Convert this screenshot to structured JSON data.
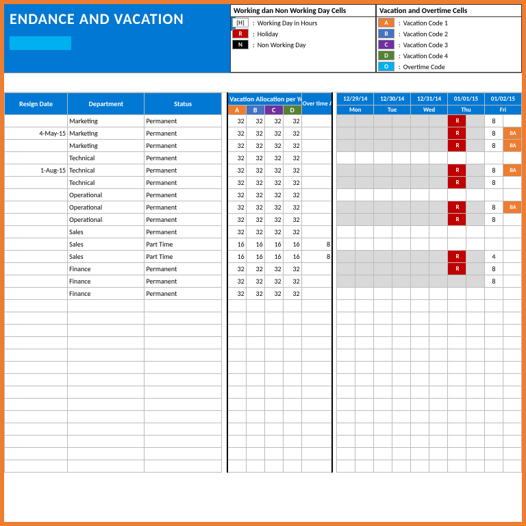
{
  "title": "ENDANCE AND VACATION",
  "legend1": {
    "title": "Working dan Non Working Day Cells",
    "rows": [
      {
        "code": "[H]",
        "bg": "#ffffff",
        "fg": "#333333",
        "label": "Working Day in Hours"
      },
      {
        "code": "R",
        "bg": "#c00000",
        "fg": "#ffffff",
        "label": "Holiday"
      },
      {
        "code": "N",
        "bg": "#000000",
        "fg": "#ffffff",
        "label": "Non Working Day"
      }
    ]
  },
  "legend2": {
    "title": "Vacation and Overtime Cells",
    "rows": [
      {
        "code": "A",
        "bg": "#ed7d31",
        "fg": "#ffffff",
        "label": "Vacation Code 1"
      },
      {
        "code": "B",
        "bg": "#4472c4",
        "fg": "#ffffff",
        "label": "Vacation Code 2"
      },
      {
        "code": "C",
        "bg": "#7030a0",
        "fg": "#ffffff",
        "label": "Vacation Code 3"
      },
      {
        "code": "D",
        "bg": "#548235",
        "fg": "#ffffff",
        "label": "Vacation Code 4"
      },
      {
        "code": "O",
        "bg": "#00b0f0",
        "fg": "#ffffff",
        "label": "Overtime Code"
      }
    ]
  },
  "headers": {
    "resign": "Resign Date",
    "dept": "Department",
    "status": "Status",
    "vacation_alloc": "Vacation Allocation per Year (Hour)",
    "overtime": "Over time Allocat ion",
    "codes": [
      {
        "code": "A",
        "bg": "#ed7d31"
      },
      {
        "code": "B",
        "bg": "#4472c4"
      },
      {
        "code": "C",
        "bg": "#7030a0"
      },
      {
        "code": "D",
        "bg": "#548235"
      }
    ],
    "dates": [
      {
        "date": "12/29/14",
        "day": "Mon"
      },
      {
        "date": "12/30/14",
        "day": "Tue"
      },
      {
        "date": "12/31/14",
        "day": "Wed"
      },
      {
        "date": "01/01/15",
        "day": "Thu"
      },
      {
        "date": "01/02/15",
        "day": "Fri"
      }
    ]
  },
  "rows": [
    {
      "resign": "",
      "dept": "Marketing",
      "status": "Permanent",
      "a": 32,
      "b": 32,
      "c": 32,
      "d": 32,
      "ot": "",
      "days": [
        [
          "g",
          ""
        ],
        [
          "g",
          ""
        ],
        [
          "g",
          ""
        ],
        [
          "R",
          "R"
        ],
        [
          "",
          "8"
        ]
      ]
    },
    {
      "resign": "4-May-15",
      "dept": "Marketing",
      "status": "Permanent",
      "a": 32,
      "b": 32,
      "c": 32,
      "d": 32,
      "ot": "",
      "days": [
        [
          "g",
          ""
        ],
        [
          "g",
          ""
        ],
        [
          "g",
          ""
        ],
        [
          "R",
          "R"
        ],
        [
          "",
          "8",
          "BA"
        ]
      ]
    },
    {
      "resign": "",
      "dept": "Marketing",
      "status": "Permanent",
      "a": 32,
      "b": 32,
      "c": 32,
      "d": 32,
      "ot": "",
      "days": [
        [
          "g",
          ""
        ],
        [
          "g",
          ""
        ],
        [
          "g",
          ""
        ],
        [
          "R",
          "R"
        ],
        [
          "",
          "8",
          "BA"
        ]
      ]
    },
    {
      "resign": "",
      "dept": "Technical",
      "status": "Permanent",
      "a": 32,
      "b": 32,
      "c": 32,
      "d": 32,
      "ot": "",
      "days": [
        [
          "",
          ""
        ],
        [
          "",
          ""
        ],
        [
          "",
          ""
        ],
        [
          "",
          ""
        ],
        [
          "",
          ""
        ]
      ]
    },
    {
      "resign": "1-Aug-15",
      "dept": "Technical",
      "status": "Permanent",
      "a": 32,
      "b": 32,
      "c": 32,
      "d": 32,
      "ot": "",
      "days": [
        [
          "g",
          ""
        ],
        [
          "g",
          ""
        ],
        [
          "g",
          ""
        ],
        [
          "R",
          "R"
        ],
        [
          "",
          "8",
          "BA"
        ]
      ]
    },
    {
      "resign": "",
      "dept": "Technical",
      "status": "Permanent",
      "a": 32,
      "b": 32,
      "c": 32,
      "d": 32,
      "ot": "",
      "days": [
        [
          "g",
          ""
        ],
        [
          "g",
          ""
        ],
        [
          "g",
          ""
        ],
        [
          "R",
          "R"
        ],
        [
          "",
          "8"
        ]
      ]
    },
    {
      "resign": "",
      "dept": "Operational",
      "status": "Permanent",
      "a": 32,
      "b": 32,
      "c": 32,
      "d": 32,
      "ot": "",
      "days": [
        [
          "",
          ""
        ],
        [
          "",
          ""
        ],
        [
          "",
          ""
        ],
        [
          "",
          ""
        ],
        [
          "",
          ""
        ]
      ]
    },
    {
      "resign": "",
      "dept": "Operational",
      "status": "Permanent",
      "a": 32,
      "b": 32,
      "c": 32,
      "d": 32,
      "ot": "",
      "days": [
        [
          "g",
          ""
        ],
        [
          "g",
          ""
        ],
        [
          "g",
          ""
        ],
        [
          "R",
          "R"
        ],
        [
          "",
          "8",
          "BA"
        ]
      ]
    },
    {
      "resign": "",
      "dept": "Operational",
      "status": "Permanent",
      "a": 32,
      "b": 32,
      "c": 32,
      "d": 32,
      "ot": "",
      "days": [
        [
          "g",
          ""
        ],
        [
          "g",
          ""
        ],
        [
          "g",
          ""
        ],
        [
          "R",
          "R"
        ],
        [
          "",
          "8"
        ]
      ]
    },
    {
      "resign": "",
      "dept": "Sales",
      "status": "Permanent",
      "a": 32,
      "b": 32,
      "c": 32,
      "d": 32,
      "ot": "",
      "days": [
        [
          "",
          ""
        ],
        [
          "",
          ""
        ],
        [
          "",
          ""
        ],
        [
          "",
          ""
        ],
        [
          "",
          ""
        ]
      ]
    },
    {
      "resign": "",
      "dept": "Sales",
      "status": "Part Time",
      "a": 16,
      "b": 16,
      "c": 16,
      "d": 16,
      "ot": 8,
      "days": [
        [
          "",
          ""
        ],
        [
          "",
          ""
        ],
        [
          "",
          ""
        ],
        [
          "",
          ""
        ],
        [
          "",
          ""
        ]
      ]
    },
    {
      "resign": "",
      "dept": "Sales",
      "status": "Part Time",
      "a": 16,
      "b": 16,
      "c": 16,
      "d": 16,
      "ot": 8,
      "days": [
        [
          "g",
          ""
        ],
        [
          "g",
          ""
        ],
        [
          "g",
          ""
        ],
        [
          "R",
          "R"
        ],
        [
          "",
          "4"
        ]
      ]
    },
    {
      "resign": "",
      "dept": "Finance",
      "status": "Permanent",
      "a": 32,
      "b": 32,
      "c": 32,
      "d": 32,
      "ot": "",
      "days": [
        [
          "g",
          ""
        ],
        [
          "g",
          ""
        ],
        [
          "g",
          ""
        ],
        [
          "R",
          "R"
        ],
        [
          "",
          "8"
        ]
      ]
    },
    {
      "resign": "",
      "dept": "Finance",
      "status": "Permanent",
      "a": 32,
      "b": 32,
      "c": 32,
      "d": 32,
      "ot": "",
      "days": [
        [
          "g",
          ""
        ],
        [
          "g",
          ""
        ],
        [
          "g",
          ""
        ],
        [
          "g",
          ""
        ],
        [
          "",
          "8"
        ]
      ]
    },
    {
      "resign": "",
      "dept": "Finance",
      "status": "Permanent",
      "a": 32,
      "b": 32,
      "c": 32,
      "d": 32,
      "ot": "",
      "days": [
        [
          "",
          ""
        ],
        [
          "",
          ""
        ],
        [
          "",
          ""
        ],
        [
          "",
          ""
        ],
        [
          "",
          ""
        ]
      ]
    }
  ],
  "blank_rows": 14
}
